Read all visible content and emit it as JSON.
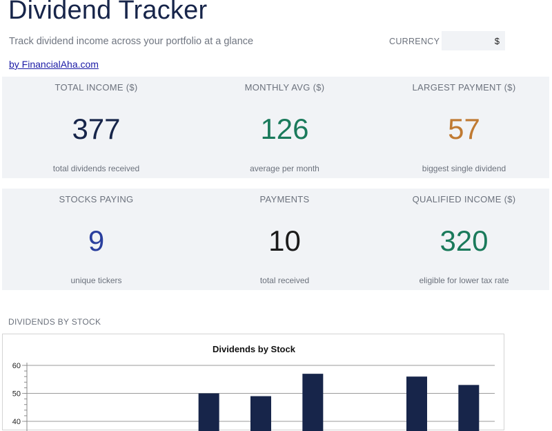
{
  "header": {
    "title": "Dividend Tracker",
    "subtitle": "Track dividend income across your portfolio at a glance",
    "byline": "by FinancialAha.com",
    "currency_label": "CURRENCY",
    "currency_value": "$"
  },
  "kpis": [
    {
      "label": "TOTAL INCOME ($)",
      "value": "377",
      "sub": "total dividends received",
      "color": "#17254a"
    },
    {
      "label": "MONTHLY AVG ($)",
      "value": "126",
      "sub": "average per month",
      "color": "#1a7a5b"
    },
    {
      "label": "LARGEST PAYMENT ($)",
      "value": "57",
      "sub": "biggest single dividend",
      "color": "#c07a32"
    },
    {
      "label": "STOCKS PAYING",
      "value": "9",
      "sub": "unique tickers",
      "color": "#2a3f9e"
    },
    {
      "label": "PAYMENTS",
      "value": "10",
      "sub": "total received",
      "color": "#1b1b1b"
    },
    {
      "label": "QUALIFIED INCOME ($)",
      "value": "320",
      "sub": "eligible for lower tax rate",
      "color": "#1a7a5b"
    }
  ],
  "section": {
    "chart_heading": "DIVIDENDS BY STOCK"
  },
  "chart_data": {
    "type": "bar",
    "title": "Dividends by Stock",
    "xlabel": "",
    "ylabel": "",
    "ylim": [
      40,
      60
    ],
    "yticks": [
      40,
      50,
      60
    ],
    "categories": [
      "",
      "",
      "",
      "",
      "",
      "",
      "",
      "",
      ""
    ],
    "values": [
      null,
      null,
      null,
      50,
      49,
      57,
      null,
      56,
      53
    ],
    "bar_color": "#17254a",
    "grid": true
  }
}
